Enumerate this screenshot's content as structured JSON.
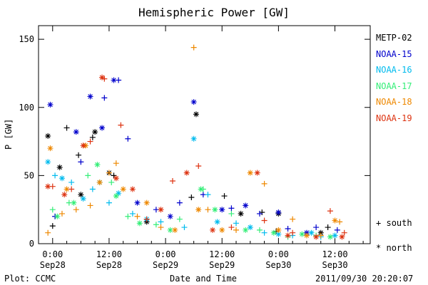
{
  "chart_data": {
    "type": "scatter",
    "title": "Hemispheric Power [GW]",
    "xlabel": "Date and Time",
    "ylabel": "P [GW]",
    "ylim": [
      0,
      160
    ],
    "xlim": [
      "2011-09-27 21:00",
      "2011-09-30 19:30"
    ],
    "yticks": [
      0,
      50,
      100,
      150
    ],
    "xticks": [
      {
        "time": "2011-09-28 00:00",
        "line1": "0:00",
        "line2": "Sep28"
      },
      {
        "time": "2011-09-28 12:00",
        "line1": "12:00",
        "line2": "Sep28"
      },
      {
        "time": "2011-09-29 00:00",
        "line1": "0:00",
        "line2": "Sep29"
      },
      {
        "time": "2011-09-29 12:00",
        "line1": "12:00",
        "line2": "Sep29"
      },
      {
        "time": "2011-09-30 00:00",
        "line1": "0:00",
        "line2": "Sep30"
      },
      {
        "time": "2011-09-30 12:00",
        "line1": "12:00",
        "line2": "Sep30"
      }
    ],
    "legend_placement": "right",
    "marker_legend": [
      {
        "symbol": "+",
        "label": "south"
      },
      {
        "symbol": "*",
        "label": "north"
      }
    ],
    "series": [
      {
        "name": "METP-02",
        "color": "#000000",
        "south": [
          [
            0.0,
            13
          ],
          [
            3.0,
            85
          ],
          [
            5.5,
            65
          ],
          [
            8.5,
            78
          ],
          [
            13.0,
            50
          ],
          [
            29.5,
            34
          ],
          [
            36.5,
            35
          ],
          [
            44.5,
            23
          ],
          [
            47.5,
            9
          ],
          [
            58.5,
            12
          ]
        ],
        "north": [
          [
            -1.0,
            79
          ],
          [
            1.5,
            56
          ],
          [
            6.0,
            36
          ],
          [
            9.0,
            82
          ],
          [
            12.0,
            52
          ],
          [
            20.0,
            16
          ],
          [
            30.5,
            95
          ],
          [
            40.0,
            22
          ],
          [
            48.0,
            22
          ],
          [
            57.0,
            8
          ]
        ]
      },
      {
        "name": "NOAA-15",
        "color": "#0000cc",
        "south": [
          [
            0.5,
            20
          ],
          [
            6.0,
            60
          ],
          [
            11.0,
            107
          ],
          [
            14.0,
            120
          ],
          [
            16.0,
            77
          ],
          [
            22.0,
            25
          ],
          [
            27.0,
            30
          ],
          [
            32.0,
            36
          ],
          [
            38.0,
            26
          ],
          [
            44.0,
            22
          ],
          [
            50.0,
            11
          ],
          [
            56.0,
            12
          ],
          [
            60.5,
            10
          ]
        ],
        "north": [
          [
            -0.5,
            102
          ],
          [
            5.0,
            82
          ],
          [
            8.0,
            108
          ],
          [
            10.5,
            85
          ],
          [
            13.0,
            120
          ],
          [
            18.0,
            30
          ],
          [
            25.0,
            20
          ],
          [
            30.0,
            104
          ],
          [
            36.0,
            25
          ],
          [
            41.0,
            28
          ],
          [
            48.0,
            23
          ],
          [
            54.0,
            8
          ]
        ]
      },
      {
        "name": "NOAA-16",
        "color": "#00bbee",
        "south": [
          [
            0.5,
            50
          ],
          [
            4.0,
            45
          ],
          [
            8.5,
            40
          ],
          [
            12.0,
            30
          ],
          [
            17.0,
            22
          ],
          [
            23.0,
            16
          ],
          [
            28.0,
            12
          ],
          [
            33.0,
            36
          ],
          [
            39.0,
            15
          ],
          [
            45.0,
            8
          ],
          [
            51.0,
            6
          ],
          [
            57.0,
            5
          ]
        ],
        "north": [
          [
            -1.0,
            60
          ],
          [
            2.0,
            48
          ],
          [
            6.5,
            33
          ],
          [
            10.0,
            45
          ],
          [
            14.0,
            37
          ],
          [
            20.0,
            18
          ],
          [
            30.0,
            77
          ],
          [
            35.0,
            16
          ],
          [
            42.0,
            12
          ],
          [
            48.0,
            7
          ],
          [
            55.0,
            8
          ],
          [
            60.0,
            6
          ]
        ]
      },
      {
        "name": "NOAA-17",
        "color": "#33ee77",
        "south": [
          [
            0.0,
            25
          ],
          [
            3.5,
            30
          ],
          [
            7.5,
            50
          ],
          [
            12.5,
            45
          ],
          [
            16.0,
            20
          ],
          [
            22.0,
            14
          ],
          [
            27.0,
            18
          ],
          [
            32.0,
            40
          ],
          [
            38.0,
            22
          ],
          [
            44.0,
            10
          ],
          [
            50.0,
            5
          ],
          [
            56.0,
            6
          ]
        ],
        "north": [
          [
            1.0,
            20
          ],
          [
            4.5,
            30
          ],
          [
            9.5,
            58
          ],
          [
            13.5,
            35
          ],
          [
            18.5,
            15
          ],
          [
            25.0,
            10
          ],
          [
            31.5,
            40
          ],
          [
            34.5,
            25
          ],
          [
            41.0,
            10
          ],
          [
            47.0,
            8
          ],
          [
            53.0,
            7
          ],
          [
            59.0,
            5
          ]
        ]
      },
      {
        "name": "NOAA-18",
        "color": "#ee8800",
        "south": [
          [
            -1.0,
            8
          ],
          [
            2.0,
            22
          ],
          [
            5.0,
            25
          ],
          [
            8.0,
            28
          ],
          [
            12.0,
            52
          ],
          [
            13.5,
            59
          ],
          [
            18.0,
            20
          ],
          [
            23.0,
            12
          ],
          [
            30.0,
            144
          ],
          [
            33.0,
            25
          ],
          [
            39.0,
            10
          ],
          [
            45.0,
            44
          ],
          [
            51.0,
            18
          ],
          [
            57.0,
            6
          ],
          [
            61.0,
            16
          ]
        ],
        "north": [
          [
            -0.5,
            70
          ],
          [
            3.0,
            40
          ],
          [
            7.0,
            72
          ],
          [
            10.0,
            45
          ],
          [
            15.0,
            40
          ],
          [
            20.0,
            30
          ],
          [
            26.0,
            10
          ],
          [
            31.0,
            25
          ],
          [
            36.0,
            10
          ],
          [
            42.0,
            52
          ],
          [
            48.0,
            10
          ],
          [
            54.0,
            6
          ],
          [
            60.0,
            17
          ]
        ]
      },
      {
        "name": "NOAA-19",
        "color": "#dd3311",
        "south": [
          [
            0.0,
            42
          ],
          [
            4.0,
            40
          ],
          [
            8.0,
            75
          ],
          [
            11.0,
            121
          ],
          [
            14.5,
            87
          ],
          [
            20.0,
            18
          ],
          [
            25.5,
            46
          ],
          [
            31.0,
            57
          ],
          [
            38.0,
            12
          ],
          [
            45.0,
            17
          ],
          [
            51.0,
            8
          ],
          [
            59.0,
            24
          ],
          [
            62.0,
            8
          ]
        ],
        "north": [
          [
            -1.0,
            42
          ],
          [
            2.5,
            36
          ],
          [
            6.5,
            72
          ],
          [
            10.5,
            122
          ],
          [
            13.5,
            48
          ],
          [
            17.0,
            40
          ],
          [
            23.0,
            25
          ],
          [
            28.5,
            52
          ],
          [
            34.0,
            10
          ],
          [
            43.5,
            52
          ],
          [
            50.0,
            6
          ],
          [
            56.0,
            5
          ],
          [
            61.5,
            5
          ]
        ]
      }
    ]
  },
  "footer": {
    "plot_source": "Plot: CCMC",
    "timestamp": "2011/09/30 20:20:07"
  }
}
